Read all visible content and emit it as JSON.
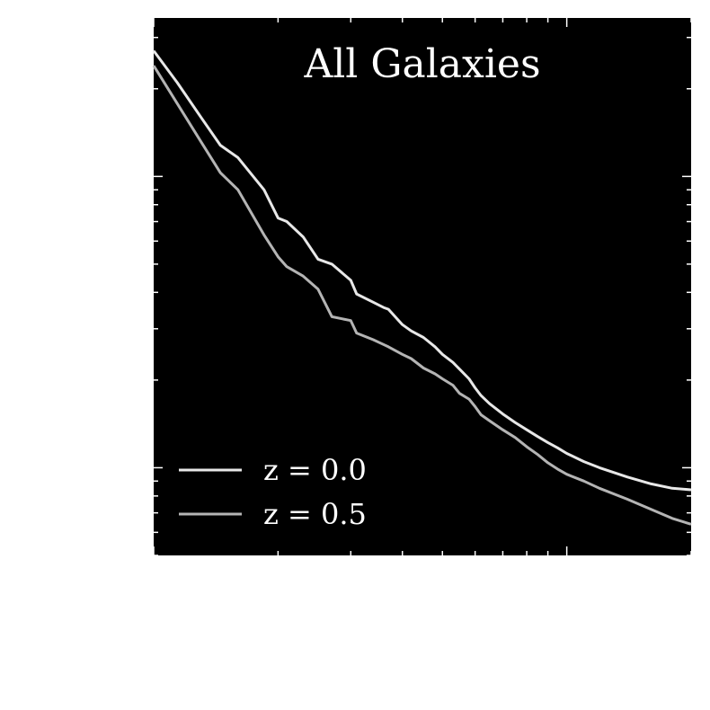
{
  "chart_data": {
    "type": "line",
    "title": "All Galaxies",
    "xlabel": "",
    "ylabel": "",
    "xscale": "log",
    "yscale": "log",
    "xlim": [
      0.1,
      2.0
    ],
    "ylim": [
      0.5,
      35
    ],
    "grid": false,
    "legend_position": "bottom-left",
    "colors": {
      "background": "#000000",
      "foreground": "#ffffff",
      "z0": "#e8e8e8",
      "z05": "#b4b4b4"
    },
    "series": [
      {
        "name": "z = 0.0",
        "color": "#e8e8e8",
        "x": [
          0.1,
          0.114,
          0.13,
          0.145,
          0.16,
          0.185,
          0.2,
          0.21,
          0.23,
          0.25,
          0.27,
          0.3,
          0.31,
          0.34,
          0.36,
          0.37,
          0.4,
          0.42,
          0.45,
          0.48,
          0.5,
          0.53,
          0.55,
          0.58,
          0.6,
          0.62,
          0.65,
          0.7,
          0.75,
          0.8,
          0.85,
          0.9,
          0.95,
          1.0,
          1.1,
          1.2,
          1.4,
          1.6,
          1.8,
          2.0
        ],
        "y": [
          27.0,
          21.0,
          16.0,
          12.8,
          11.6,
          9.0,
          7.2,
          7.0,
          6.2,
          5.2,
          5.0,
          4.4,
          3.95,
          3.7,
          3.55,
          3.5,
          3.1,
          2.95,
          2.8,
          2.6,
          2.45,
          2.3,
          2.18,
          2.02,
          1.88,
          1.77,
          1.66,
          1.53,
          1.43,
          1.35,
          1.28,
          1.22,
          1.17,
          1.12,
          1.05,
          1.0,
          0.93,
          0.88,
          0.85,
          0.84
        ]
      },
      {
        "name": "z = 0.5",
        "color": "#b4b4b4",
        "x": [
          0.1,
          0.114,
          0.13,
          0.145,
          0.16,
          0.185,
          0.2,
          0.21,
          0.23,
          0.25,
          0.27,
          0.3,
          0.31,
          0.34,
          0.36,
          0.37,
          0.4,
          0.42,
          0.45,
          0.48,
          0.5,
          0.53,
          0.55,
          0.58,
          0.6,
          0.62,
          0.65,
          0.7,
          0.75,
          0.8,
          0.85,
          0.9,
          0.95,
          1.0,
          1.1,
          1.2,
          1.4,
          1.6,
          1.8,
          2.0
        ],
        "y": [
          24.0,
          17.8,
          13.2,
          10.3,
          9.0,
          6.3,
          5.3,
          4.9,
          4.55,
          4.1,
          3.3,
          3.2,
          2.9,
          2.75,
          2.65,
          2.6,
          2.45,
          2.37,
          2.2,
          2.1,
          2.02,
          1.92,
          1.8,
          1.72,
          1.62,
          1.52,
          1.45,
          1.35,
          1.27,
          1.18,
          1.11,
          1.04,
          0.99,
          0.95,
          0.9,
          0.85,
          0.78,
          0.72,
          0.67,
          0.64
        ]
      }
    ]
  }
}
